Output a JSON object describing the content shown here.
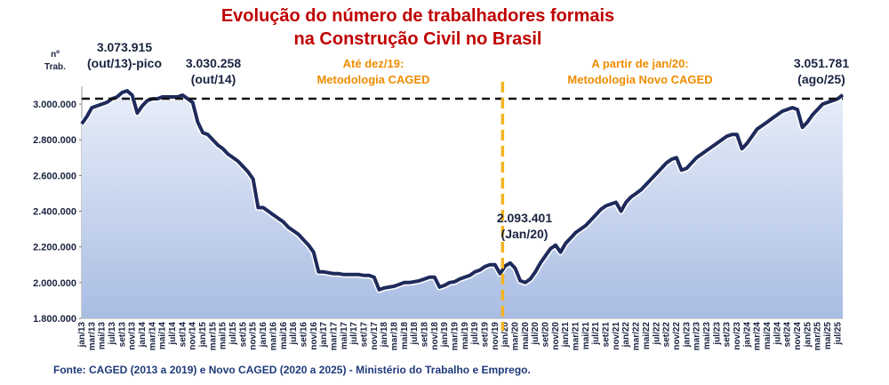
{
  "chart_data": {
    "type": "area",
    "title": [
      "Evolução do número de trabalhadores  formais",
      "na Construção Civil no Brasil"
    ],
    "y_label": [
      "nº",
      "Trab."
    ],
    "source": "Fonte: CAGED (2013 a 2019) e Novo CAGED (2020 a 2025) - Ministério do Trabalho e Emprego.",
    "annotations": [
      {
        "lines": [
          "3.073.915",
          "(out/13)-pico"
        ],
        "color": "#1a2340"
      },
      {
        "lines": [
          "3.030.258",
          "(out/14)"
        ],
        "color": "#1a2340"
      },
      {
        "lines": [
          "Até dez/19:",
          "Metodologia CAGED"
        ],
        "color": "#f08c00"
      },
      {
        "lines": [
          "A partir de jan/20:",
          "Metodologia Novo CAGED"
        ],
        "color": "#f08c00"
      },
      {
        "lines": [
          "2.093.401",
          "(Jan/20)"
        ],
        "color": "#1a2340"
      },
      {
        "lines": [
          "3.051.781",
          "(ago/25)"
        ],
        "color": "#1a2340"
      }
    ],
    "categories": [
      "jan/13",
      null,
      "mar/13",
      null,
      "mai/13",
      null,
      "jul/13",
      null,
      "set/13",
      null,
      "nov/13",
      null,
      "jan/14",
      null,
      "mar/14",
      null,
      "mai/14",
      null,
      "jul/14",
      null,
      "set/14",
      null,
      "nov/14",
      null,
      "jan/15",
      null,
      "mar/15",
      null,
      "mai/15",
      null,
      "jul/15",
      null,
      "set/15",
      null,
      "nov/15",
      null,
      "jan/16",
      null,
      "mar/16",
      null,
      "mai/16",
      null,
      "jul/16",
      null,
      "set/16",
      null,
      "nov/16",
      null,
      "jan/17",
      null,
      "mar/17",
      null,
      "mai/17",
      null,
      "jul/17",
      null,
      "set/17",
      null,
      "nov/17",
      null,
      "jan/18",
      null,
      "mar/18",
      null,
      "mai/18",
      null,
      "jul/18",
      null,
      "set/18",
      null,
      "nov/18",
      null,
      "jan/19",
      null,
      "mar/19",
      null,
      "mai/19",
      null,
      "jul/19",
      null,
      "set/19",
      null,
      "nov/19",
      null,
      "jan/20",
      null,
      "mar/20",
      null,
      "mai/20",
      null,
      "jul/20",
      null,
      "set/20",
      null,
      "nov/20",
      null,
      "jan/21",
      null,
      "mar/21",
      null,
      "mai/21",
      null,
      "jul/21",
      null,
      "set/21",
      null,
      "nov/21",
      null,
      "jan/22",
      null,
      "mar/22",
      null,
      "mai/22",
      null,
      "jul/22",
      null,
      "set/22",
      null,
      "nov/22",
      null,
      "jan/23",
      null,
      "mar/23",
      null,
      "mai/23",
      null,
      "jul/23",
      null,
      "set/23",
      null,
      "nov/23",
      null,
      "jan/24",
      null,
      "mar/24",
      null,
      "mai/24",
      null,
      "jul/24",
      null,
      "set/24",
      null,
      "nov/24",
      null,
      "jan/25",
      null,
      "mar/25",
      null,
      "mai/25",
      null,
      "jul/25",
      null
    ],
    "values": [
      2890000,
      2930000,
      2980000,
      2990000,
      3000000,
      3010000,
      3030000,
      3040000,
      3065000,
      3073915,
      3050000,
      2950000,
      2990000,
      3020000,
      3030000,
      3030000,
      3040000,
      3040000,
      3040000,
      3040000,
      3050000,
      3030258,
      3010000,
      2900000,
      2840000,
      2830000,
      2800000,
      2770000,
      2750000,
      2720000,
      2700000,
      2680000,
      2650000,
      2620000,
      2580000,
      2420000,
      2420000,
      2400000,
      2380000,
      2360000,
      2340000,
      2310000,
      2290000,
      2270000,
      2240000,
      2210000,
      2170000,
      2060000,
      2060000,
      2055000,
      2050000,
      2050000,
      2045000,
      2045000,
      2045000,
      2045000,
      2040000,
      2040000,
      2030000,
      1960000,
      1970000,
      1975000,
      1980000,
      1990000,
      2000000,
      2000000,
      2005000,
      2010000,
      2020000,
      2030000,
      2030000,
      1975000,
      1985000,
      2000000,
      2005000,
      2020000,
      2030000,
      2040000,
      2060000,
      2070000,
      2090000,
      2100000,
      2100000,
      2050000,
      2093401,
      2110000,
      2080000,
      2010000,
      2000000,
      2020000,
      2060000,
      2110000,
      2150000,
      2190000,
      2210000,
      2170000,
      2220000,
      2250000,
      2280000,
      2300000,
      2320000,
      2350000,
      2380000,
      2410000,
      2430000,
      2440000,
      2450000,
      2400000,
      2450000,
      2480000,
      2500000,
      2520000,
      2550000,
      2580000,
      2610000,
      2640000,
      2670000,
      2690000,
      2700000,
      2630000,
      2640000,
      2670000,
      2700000,
      2720000,
      2740000,
      2760000,
      2780000,
      2800000,
      2820000,
      2830000,
      2830000,
      2750000,
      2780000,
      2820000,
      2860000,
      2880000,
      2900000,
      2920000,
      2940000,
      2960000,
      2970000,
      2980000,
      2970000,
      2870000,
      2900000,
      2940000,
      2970000,
      3000000,
      3010000,
      3020000,
      3030000,
      3051781
    ],
    "line_color": "#1f2a5c",
    "fill_color": "#b9c9e9",
    "ylim": [
      1800000,
      3100000
    ],
    "yticks": [
      {
        "value": 1800000,
        "label": "1.800.000"
      },
      {
        "value": 2000000,
        "label": "2.000.000"
      },
      {
        "value": 2200000,
        "label": "2.200.000"
      },
      {
        "value": 2400000,
        "label": "2.400.000"
      },
      {
        "value": 2600000,
        "label": "2.600.000"
      },
      {
        "value": 2800000,
        "label": "2.800.000"
      },
      {
        "value": 3000000,
        "label": "3.000.000"
      }
    ]
  }
}
